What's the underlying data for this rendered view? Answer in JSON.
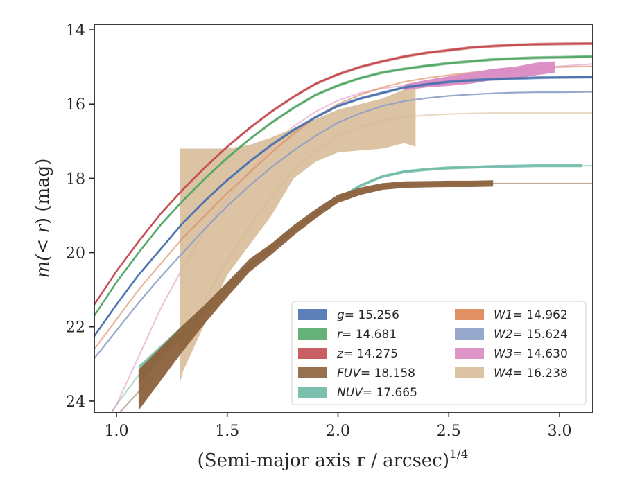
{
  "chart_data": {
    "type": "line",
    "xlabel": "(Semi-major axis r / arcsec)",
    "xlabel_exponent": "1/4",
    "ylabel_prefix": "m(",
    "ylabel_italic": "< r",
    "ylabel_suffix": ") (mag)",
    "xlim": [
      0.9,
      3.15
    ],
    "ylim": [
      24.3,
      13.85
    ],
    "y_inverted": true,
    "xticks": [
      1.0,
      1.5,
      2.0,
      2.5,
      3.0
    ],
    "xtick_labels": [
      "1.0",
      "1.5",
      "2.0",
      "2.5",
      "3.0"
    ],
    "yticks": [
      14,
      16,
      18,
      20,
      22,
      24
    ],
    "ytick_labels": [
      "14",
      "16",
      "18",
      "20",
      "22",
      "24"
    ],
    "grid": false,
    "legend_position": "lower-right",
    "series": [
      {
        "key": "g",
        "label_var": "g",
        "label_val": "= 15.256",
        "color": "#4c72b0",
        "x": [
          0.9,
          1.0,
          1.1,
          1.2,
          1.3,
          1.4,
          1.5,
          1.6,
          1.7,
          1.8,
          1.9,
          2.0,
          2.1,
          2.2,
          2.3,
          2.4,
          2.5,
          2.6,
          2.7,
          2.8,
          2.9,
          3.0,
          3.15
        ],
        "y": [
          22.25,
          21.4,
          20.6,
          19.9,
          19.2,
          18.6,
          18.05,
          17.55,
          17.1,
          16.7,
          16.35,
          16.05,
          15.85,
          15.7,
          15.55,
          15.47,
          15.4,
          15.36,
          15.33,
          15.31,
          15.29,
          15.28,
          15.27
        ],
        "band": 0.08,
        "band_x_start": 0.9,
        "band_x_end": 2.3
      },
      {
        "key": "r",
        "label_var": "r",
        "label_val": "= 14.681",
        "color": "#55a868",
        "x": [
          0.9,
          1.0,
          1.1,
          1.2,
          1.3,
          1.4,
          1.5,
          1.6,
          1.7,
          1.8,
          1.9,
          2.0,
          2.1,
          2.2,
          2.3,
          2.4,
          2.5,
          2.6,
          2.7,
          2.8,
          2.9,
          3.0,
          3.15
        ],
        "y": [
          21.7,
          20.8,
          20.0,
          19.25,
          18.6,
          18.0,
          17.45,
          16.95,
          16.5,
          16.1,
          15.75,
          15.5,
          15.3,
          15.15,
          15.05,
          14.97,
          14.9,
          14.85,
          14.8,
          14.77,
          14.75,
          14.74,
          14.72
        ],
        "band": 0.08,
        "band_x_start": 0.9,
        "band_x_end": 3.15
      },
      {
        "key": "z",
        "label_var": "z",
        "label_val": "= 14.275",
        "color": "#c44e52",
        "x": [
          0.9,
          1.0,
          1.1,
          1.2,
          1.3,
          1.4,
          1.5,
          1.6,
          1.7,
          1.8,
          1.9,
          2.0,
          2.1,
          2.2,
          2.3,
          2.4,
          2.5,
          2.6,
          2.7,
          2.8,
          2.9,
          3.0,
          3.15
        ],
        "y": [
          21.4,
          20.5,
          19.7,
          18.95,
          18.3,
          17.7,
          17.15,
          16.65,
          16.2,
          15.8,
          15.45,
          15.2,
          15.0,
          14.85,
          14.72,
          14.62,
          14.55,
          14.48,
          14.44,
          14.41,
          14.39,
          14.38,
          14.37
        ],
        "band": 0.08,
        "band_x_start": 0.9,
        "band_x_end": 3.15
      },
      {
        "key": "fuv",
        "label_var": "FUV",
        "label_val": "= 18.158",
        "color": "#8c613c",
        "x": [
          1.1,
          1.2,
          1.3,
          1.4,
          1.5,
          1.6,
          1.7,
          1.8,
          1.9,
          2.0,
          2.1,
          2.2,
          2.3,
          2.4,
          2.5,
          2.6,
          2.7
        ],
        "y": [
          23.7,
          23.0,
          22.3,
          21.65,
          21.0,
          20.35,
          19.9,
          19.4,
          18.95,
          18.55,
          18.35,
          18.22,
          18.17,
          18.16,
          18.15,
          18.15,
          18.14
        ],
        "band_widths": [
          1.1,
          0.9,
          0.7,
          0.5,
          0.4,
          0.35,
          0.3,
          0.28,
          0.25,
          0.22,
          0.2,
          0.18,
          0.18,
          0.17,
          0.17,
          0.17,
          0.17
        ],
        "tail_x": [
          0.9,
          1.0,
          1.1,
          1.2,
          1.3,
          1.4,
          1.5,
          1.6,
          1.7,
          1.8,
          1.9,
          2.0,
          2.1,
          2.2,
          2.3,
          2.4,
          2.5,
          2.6,
          2.7,
          2.8,
          2.9,
          3.0,
          3.15
        ],
        "tail_y": [
          25.0,
          24.4,
          23.75,
          23.05,
          22.35,
          21.7,
          21.05,
          20.4,
          19.9,
          19.4,
          18.95,
          18.55,
          18.35,
          18.22,
          18.17,
          18.16,
          18.15,
          18.15,
          18.14,
          18.14,
          18.14,
          18.14,
          18.14
        ]
      },
      {
        "key": "nuv",
        "label_var": "NUV",
        "label_val": "= 17.665",
        "color": "#64b5a0",
        "x": [
          1.1,
          1.2,
          1.3,
          1.4,
          1.5,
          1.6,
          1.7,
          1.8,
          1.9,
          2.0,
          2.1,
          2.2,
          2.3,
          2.4,
          2.5,
          2.6,
          2.7,
          2.8,
          2.9,
          3.0,
          3.1
        ],
        "y": [
          23.3,
          22.7,
          22.1,
          21.5,
          20.9,
          20.35,
          19.85,
          19.4,
          18.95,
          18.55,
          18.2,
          17.95,
          17.82,
          17.76,
          17.72,
          17.7,
          17.68,
          17.67,
          17.66,
          17.66,
          17.66
        ],
        "band_widths": [
          0.5,
          0.4,
          0.3,
          0.2,
          0.12,
          0.1,
          0.08,
          0.08,
          0.08,
          0.08,
          0.08,
          0.08,
          0.08,
          0.08,
          0.08,
          0.08,
          0.08,
          0.08,
          0.08,
          0.08,
          0.08
        ],
        "tail_x": [
          0.9,
          1.0,
          1.1,
          1.2,
          1.3,
          1.4,
          1.5,
          1.6,
          1.7,
          1.8,
          1.9,
          2.0,
          2.1,
          2.2,
          2.3,
          2.4,
          2.5,
          2.6,
          2.7,
          2.8,
          2.9,
          3.0,
          3.15
        ],
        "tail_y": [
          25.0,
          24.1,
          23.3,
          22.7,
          22.1,
          21.5,
          20.9,
          20.35,
          19.85,
          19.4,
          18.95,
          18.55,
          18.2,
          17.95,
          17.82,
          17.76,
          17.72,
          17.7,
          17.68,
          17.67,
          17.66,
          17.66,
          17.66
        ]
      },
      {
        "key": "w1",
        "label_var": "W1",
        "label_val": "= 14.962",
        "color": "#dd8452",
        "x": [
          0.9,
          1.0,
          1.1,
          1.2,
          1.3,
          1.4,
          1.5,
          1.6,
          1.7,
          1.8,
          1.9,
          2.0,
          2.1,
          2.2,
          2.3,
          2.4,
          2.5,
          2.6,
          2.7,
          2.8,
          2.9,
          3.0,
          3.15
        ],
        "y": [
          22.6,
          21.8,
          21.0,
          20.3,
          19.6,
          19.0,
          18.4,
          17.85,
          17.3,
          16.8,
          16.35,
          16.0,
          15.75,
          15.55,
          15.4,
          15.3,
          15.22,
          15.15,
          15.1,
          15.06,
          15.03,
          15.0,
          14.98
        ]
      },
      {
        "key": "w2",
        "label_var": "W2",
        "label_val": "= 15.624",
        "color": "#8c9fc8",
        "x": [
          0.9,
          1.0,
          1.1,
          1.2,
          1.3,
          1.4,
          1.5,
          1.6,
          1.7,
          1.8,
          1.9,
          2.0,
          2.1,
          2.2,
          2.3,
          2.4,
          2.5,
          2.6,
          2.7,
          2.8,
          2.9,
          3.0,
          3.15
        ],
        "y": [
          22.85,
          22.1,
          21.35,
          20.65,
          20.0,
          19.35,
          18.75,
          18.2,
          17.7,
          17.25,
          16.85,
          16.5,
          16.25,
          16.05,
          15.92,
          15.84,
          15.78,
          15.74,
          15.71,
          15.69,
          15.68,
          15.68,
          15.67
        ]
      },
      {
        "key": "w3",
        "label_var": "W3",
        "label_val": "= 14.630",
        "color": "#da8bc3",
        "x": [
          2.3,
          2.4,
          2.5,
          2.6,
          2.7,
          2.8,
          2.9,
          2.98
        ],
        "y": [
          15.55,
          15.45,
          15.38,
          15.3,
          15.2,
          15.15,
          15.05,
          15.0
        ],
        "band_widths": [
          0.16,
          0.2,
          0.26,
          0.3,
          0.3,
          0.32,
          0.34,
          0.3
        ],
        "tail_x": [
          0.9,
          1.0,
          1.1,
          1.2,
          1.3,
          1.4,
          1.5,
          1.6,
          1.7,
          1.8,
          1.9,
          2.0,
          2.1,
          2.2,
          2.3,
          2.4,
          2.5,
          2.6,
          2.7,
          2.8,
          2.9,
          3.0,
          3.15
        ],
        "tail_y": [
          25.0,
          24.1,
          22.8,
          21.5,
          20.4,
          19.4,
          18.55,
          17.8,
          17.15,
          16.6,
          16.2,
          15.9,
          15.7,
          15.58,
          15.5,
          15.42,
          15.35,
          15.28,
          15.2,
          15.12,
          15.05,
          14.98,
          14.92
        ]
      },
      {
        "key": "w4",
        "label_var": "W4",
        "label_val": "= 16.238",
        "color": "#d5b893",
        "band_upper_x": [
          1.285,
          1.3,
          1.4,
          1.5,
          1.6,
          1.7,
          1.8,
          1.9,
          2.0,
          2.1,
          2.2,
          2.3,
          2.35
        ],
        "band_upper_y": [
          17.2,
          17.2,
          17.2,
          17.2,
          17.1,
          16.9,
          16.65,
          16.4,
          16.15,
          16.0,
          15.85,
          15.6,
          15.6
        ],
        "band_lower_x": [
          1.285,
          1.3,
          1.4,
          1.5,
          1.6,
          1.7,
          1.8,
          1.9,
          2.0,
          2.1,
          2.2,
          2.3,
          2.35
        ],
        "band_lower_y": [
          23.55,
          23.2,
          21.9,
          20.6,
          19.8,
          19.0,
          18.0,
          17.55,
          17.3,
          17.25,
          17.2,
          17.05,
          17.15
        ],
        "tail_x": [
          1.3,
          1.4,
          1.5,
          1.6,
          1.7,
          1.8,
          1.9,
          2.0,
          2.1,
          2.2,
          2.3,
          2.4,
          2.5,
          2.6,
          2.7,
          2.8,
          2.9,
          3.0,
          3.15
        ],
        "tail_y": [
          22.5,
          21.3,
          20.2,
          19.3,
          18.5,
          17.8,
          17.25,
          16.85,
          16.6,
          16.45,
          16.35,
          16.3,
          16.27,
          16.25,
          16.24,
          16.24,
          16.24,
          16.24,
          16.24
        ]
      }
    ],
    "legend_col1": [
      "g",
      "r",
      "z",
      "fuv",
      "nuv"
    ],
    "legend_col2": [
      "w1",
      "w2",
      "w3",
      "w4"
    ]
  }
}
